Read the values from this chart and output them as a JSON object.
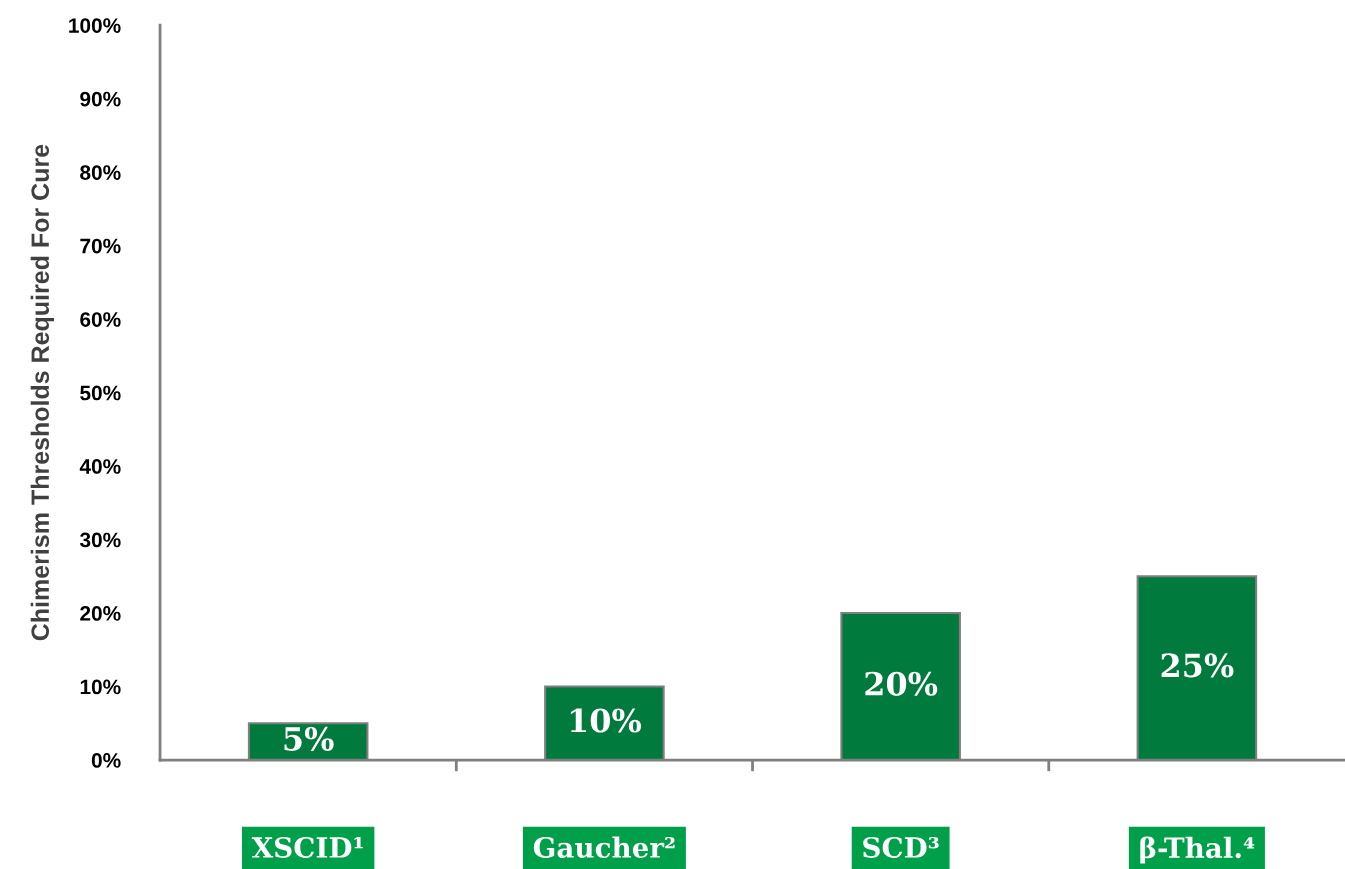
{
  "chart_data": {
    "type": "bar",
    "categories": [
      "XSCID¹",
      "Gaucher²",
      "SCD³",
      "β-Thal.⁴"
    ],
    "values": [
      5,
      10,
      20,
      25
    ],
    "value_labels": [
      "5%",
      "10%",
      "20%",
      "25%"
    ],
    "color": "#007a3d",
    "ylabel": "Chimerism Thresholds Required For Cure",
    "ylim": [
      0,
      100
    ],
    "yticks": [
      {
        "value": 0,
        "label": "0%"
      },
      {
        "value": 10,
        "label": "10%"
      },
      {
        "value": 20,
        "label": "20%"
      },
      {
        "value": 30,
        "label": "30%"
      },
      {
        "value": 40,
        "label": "40%"
      },
      {
        "value": 50,
        "label": "50%"
      },
      {
        "value": 60,
        "label": "60%"
      },
      {
        "value": 70,
        "label": "70%"
      },
      {
        "value": 80,
        "label": "80%"
      },
      {
        "value": 90,
        "label": "90%"
      },
      {
        "value": 100,
        "label": "100%"
      }
    ],
    "grid": false,
    "legend": false
  }
}
